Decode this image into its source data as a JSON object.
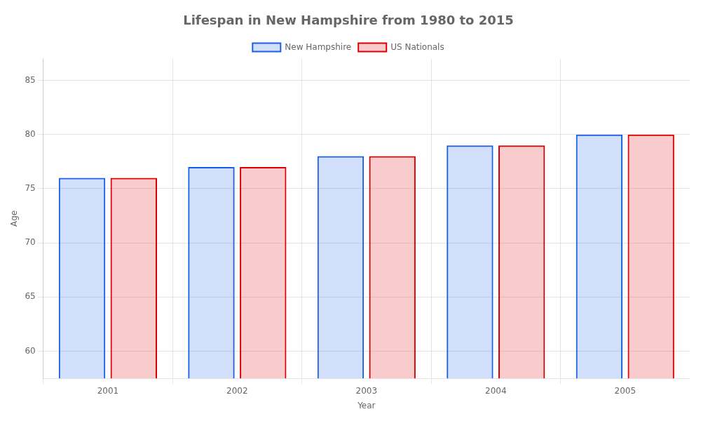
{
  "chart_data": {
    "type": "bar",
    "title": "Lifespan in New Hampshire from 1980 to 2015",
    "xlabel": "Year",
    "ylabel": "Age",
    "categories": [
      "2001",
      "2002",
      "2003",
      "2004",
      "2005"
    ],
    "series": [
      {
        "name": "New Hampshire",
        "color": "#1a5fe8",
        "values": [
          76,
          77,
          78,
          79,
          80
        ]
      },
      {
        "name": "US Nationals",
        "color": "#dd0000",
        "values": [
          76,
          77,
          78,
          79,
          80
        ]
      }
    ],
    "ylim": [
      57.5,
      87
    ],
    "yticks": [
      60,
      65,
      70,
      75,
      80,
      85
    ],
    "grid": true,
    "legend": "top"
  }
}
